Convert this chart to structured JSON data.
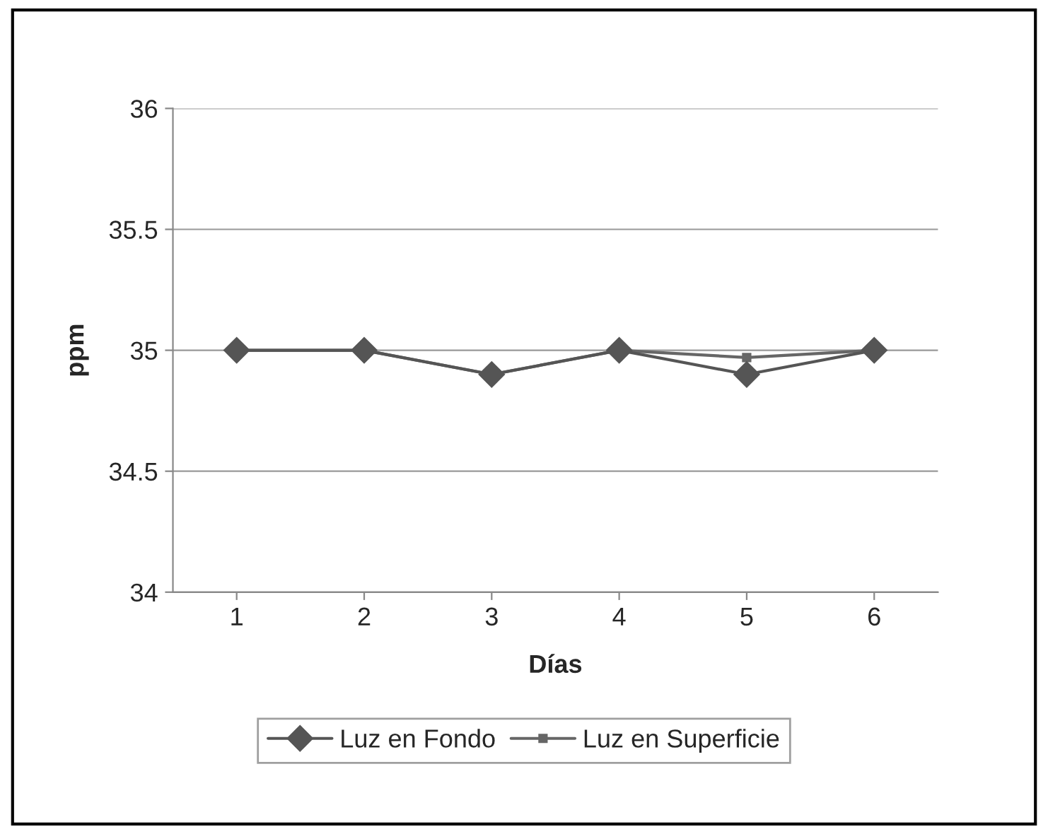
{
  "chart_data": {
    "type": "line",
    "xlabel": "Días",
    "ylabel": "ppm",
    "categories": [
      "1",
      "2",
      "3",
      "4",
      "5",
      "6"
    ],
    "series": [
      {
        "name": "Luz en Fondo",
        "color": "#555555",
        "marker": "diamond",
        "values": [
          35,
          35,
          34.9,
          35,
          34.9,
          35
        ]
      },
      {
        "name": "Luz en Superficie",
        "color": "#666666",
        "marker": "square",
        "values": [
          35,
          35,
          34.9,
          35,
          34.97,
          35
        ]
      }
    ],
    "ylim": [
      34,
      36
    ],
    "yticks": [
      34,
      34.5,
      35,
      35.5,
      36
    ],
    "grid": "y",
    "legend": "bottom"
  }
}
